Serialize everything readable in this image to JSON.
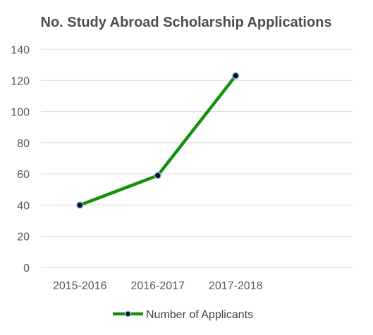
{
  "chart_data": {
    "type": "line",
    "title": "No. Study Abroad Scholarship Applications",
    "xlabel": "",
    "ylabel": "",
    "categories": [
      "2015-2016",
      "2016-2017",
      "2017-2018"
    ],
    "series": [
      {
        "name": "Number of Applicants",
        "values": [
          40,
          59,
          123
        ],
        "color": "#13910a",
        "marker_fill": "#0a0f2e",
        "marker_stroke": "#9dc3e6"
      }
    ],
    "ylim": [
      0,
      140
    ],
    "yticks": [
      0,
      20,
      40,
      60,
      80,
      100,
      120,
      140
    ],
    "grid": true,
    "legend_position": "bottom"
  }
}
